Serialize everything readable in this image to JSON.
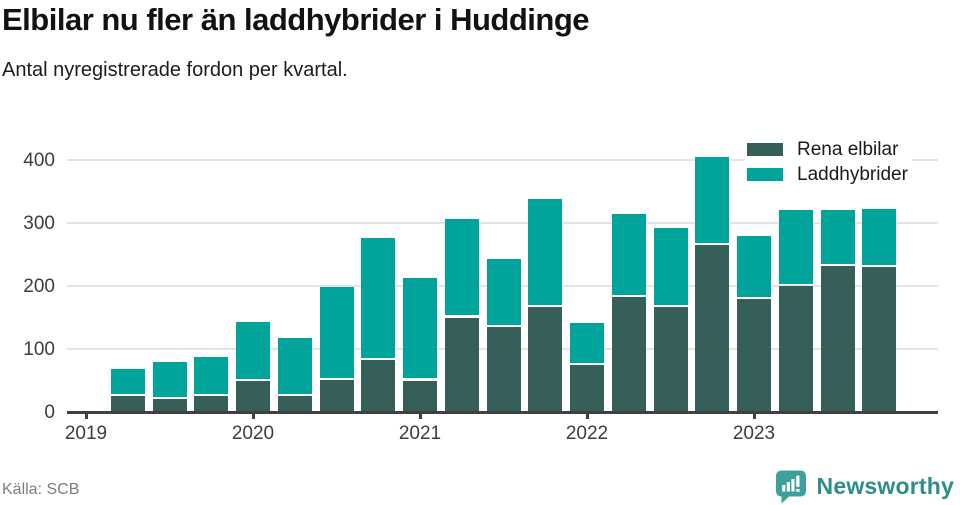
{
  "title": "Elbilar nu fler än laddhybrider i Huddinge",
  "subtitle": "Antal nyregistrerade fordon per kvartal.",
  "source": "Källa: SCB",
  "branding": {
    "name": "Newsworthy",
    "icon": "newsworthy-speech-bubble-chart-icon"
  },
  "colors": {
    "rena_elbilar": "#365f59",
    "laddhybrider": "#00a49a",
    "grid": "#e4e4e4",
    "axis": "#404040",
    "axis_label": "#3d3d3d",
    "title_text": "#121212",
    "source_text": "#7d7d7d",
    "brand_teal": "#2e8d89",
    "brand_icon_teal": "#3da09a",
    "background": "#ffffff"
  },
  "legend": {
    "items": [
      {
        "label": "Rena elbilar",
        "color": "#365f59"
      },
      {
        "label": "Laddhybrider",
        "color": "#00a49a"
      }
    ]
  },
  "chart_data": {
    "type": "bar",
    "stacked": true,
    "title": "Elbilar nu fler än laddhybrider i Huddinge",
    "subtitle": "Antal nyregistrerade fordon per kvartal.",
    "x": [
      "2019 Q2",
      "2019 Q3",
      "2019 Q4",
      "2020 Q1",
      "2020 Q2",
      "2020 Q3",
      "2020 Q4",
      "2021 Q1",
      "2021 Q2",
      "2021 Q3",
      "2021 Q4",
      "2022 Q1",
      "2022 Q2",
      "2022 Q3",
      "2022 Q4",
      "2023 Q1",
      "2023 Q2",
      "2023 Q3",
      "2023 Q4"
    ],
    "series": [
      {
        "name": "Rena elbilar",
        "color": "#365f59",
        "values": [
          25,
          20,
          25,
          49,
          25,
          51,
          83,
          50,
          150,
          135,
          166,
          75,
          182,
          166,
          265,
          180,
          200,
          232,
          230
        ]
      },
      {
        "name": "Laddhybrider",
        "color": "#00a49a",
        "values": [
          43,
          60,
          62,
          94,
          92,
          147,
          193,
          162,
          156,
          108,
          172,
          66,
          132,
          126,
          139,
          99,
          120,
          89,
          93
        ]
      }
    ],
    "ylabel": "",
    "xlabel": "",
    "ylim": [
      0,
      400
    ],
    "yticks": [
      0,
      100,
      200,
      300,
      400
    ],
    "xticks": [
      "2019",
      "2020",
      "2021",
      "2022",
      "2023"
    ],
    "grid": true,
    "legend_position": "top-right"
  }
}
